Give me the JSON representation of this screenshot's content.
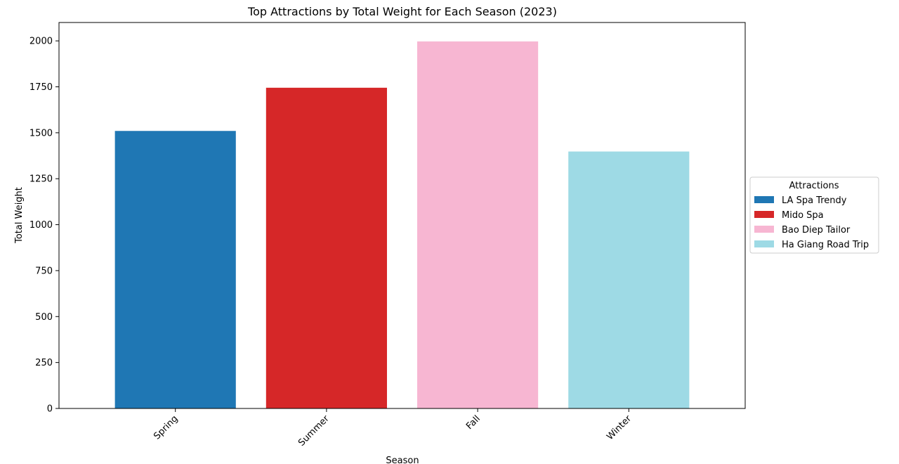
{
  "chart_data": {
    "type": "bar",
    "title": "Top Attractions by Total Weight for Each Season (2023)",
    "xlabel": "Season",
    "ylabel": "Total Weight",
    "categories": [
      "Spring",
      "Summer",
      "Fall",
      "Winter"
    ],
    "values": [
      1510,
      1745,
      1997,
      1398
    ],
    "bar_labels": [
      "LA Spa Trendy",
      "Mido Spa",
      "Bao Diep Tailor",
      "Ha Giang Road Trip"
    ],
    "colors": [
      "#1f77b4",
      "#d62728",
      "#f7b6d2",
      "#9edae5"
    ],
    "ylim": [
      0,
      2100
    ],
    "yticks": [
      0,
      250,
      500,
      750,
      1000,
      1250,
      1500,
      1750,
      2000
    ],
    "grid": false,
    "legend": {
      "title": "Attractions",
      "placement": "center-right-outside",
      "entries": [
        "LA Spa Trendy",
        "Mido Spa",
        "Bao Diep Tailor",
        "Ha Giang Road Trip"
      ]
    }
  }
}
